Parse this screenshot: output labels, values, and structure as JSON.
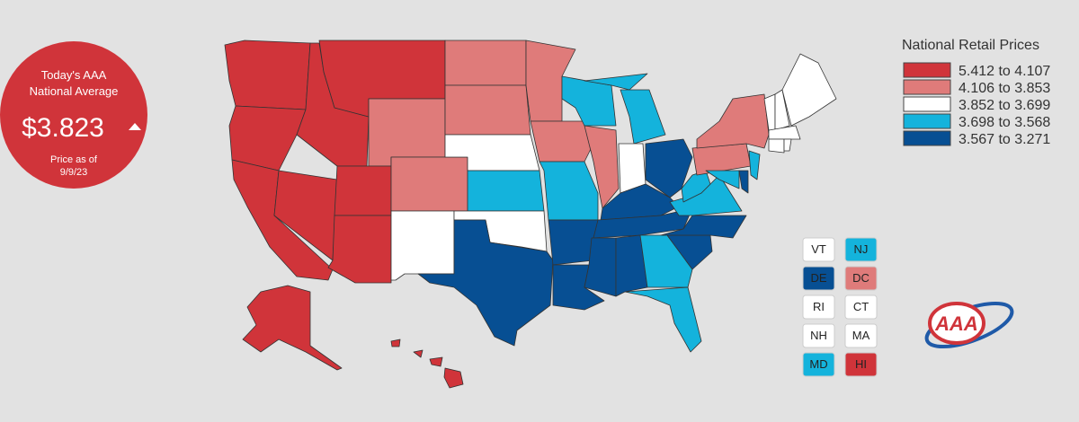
{
  "badge": {
    "line1": "Today's AAA",
    "line2": "National Average",
    "price": "$3.823",
    "date_label": "Price as of",
    "date": "9/9/23"
  },
  "legend": {
    "title": "National Retail Prices",
    "entries": [
      {
        "label": "5.412 to 4.107",
        "color": "#d0343a"
      },
      {
        "label": "4.106 to 3.853",
        "color": "#df7b7a"
      },
      {
        "label": "3.852 to 3.699",
        "color": "#ffffff"
      },
      {
        "label": "3.698 to 3.568",
        "color": "#14b3dc"
      },
      {
        "label": "3.567 to 3.271",
        "color": "#074f93"
      }
    ]
  },
  "small_states": [
    "VT",
    "NJ",
    "DE",
    "DC",
    "RI",
    "CT",
    "NH",
    "MA",
    "MD",
    "HI"
  ],
  "logo": {
    "text": "AAA"
  }
}
